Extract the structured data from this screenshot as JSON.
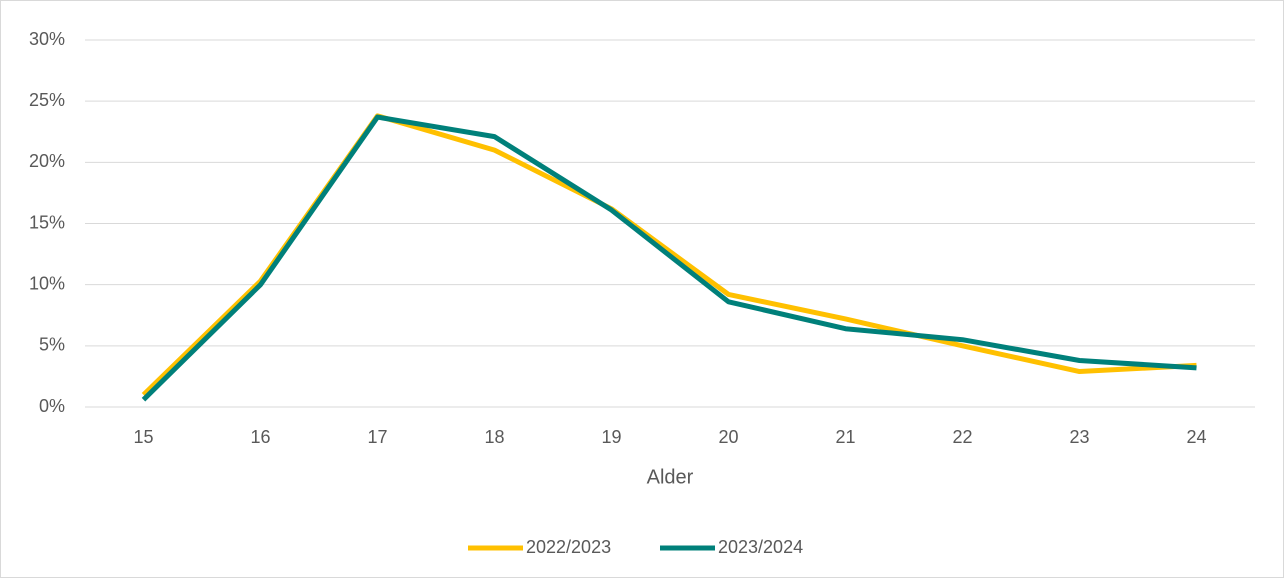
{
  "chart_data": {
    "type": "line",
    "x_label": "Alder",
    "categories": [
      "15",
      "16",
      "17",
      "18",
      "19",
      "20",
      "21",
      "22",
      "23",
      "24"
    ],
    "series": [
      {
        "name": "2022/2023",
        "color": "#ffc000",
        "values": [
          1.0,
          10.3,
          23.8,
          21.0,
          16.2,
          9.2,
          7.2,
          5.0,
          2.9,
          3.4
        ]
      },
      {
        "name": "2023/2024",
        "color": "#00807a",
        "values": [
          0.6,
          10.0,
          23.7,
          22.1,
          16.1,
          8.6,
          6.4,
          5.5,
          3.8,
          3.2
        ]
      }
    ],
    "ylim": [
      0,
      30
    ],
    "yticks": [
      {
        "value": 0,
        "label": "0%"
      },
      {
        "value": 5,
        "label": "5%"
      },
      {
        "value": 10,
        "label": "10%"
      },
      {
        "value": 15,
        "label": "15%"
      },
      {
        "value": 20,
        "label": "20%"
      },
      {
        "value": 25,
        "label": "25%"
      },
      {
        "value": 30,
        "label": "30%"
      }
    ],
    "grid": true,
    "legend": "bottom"
  }
}
